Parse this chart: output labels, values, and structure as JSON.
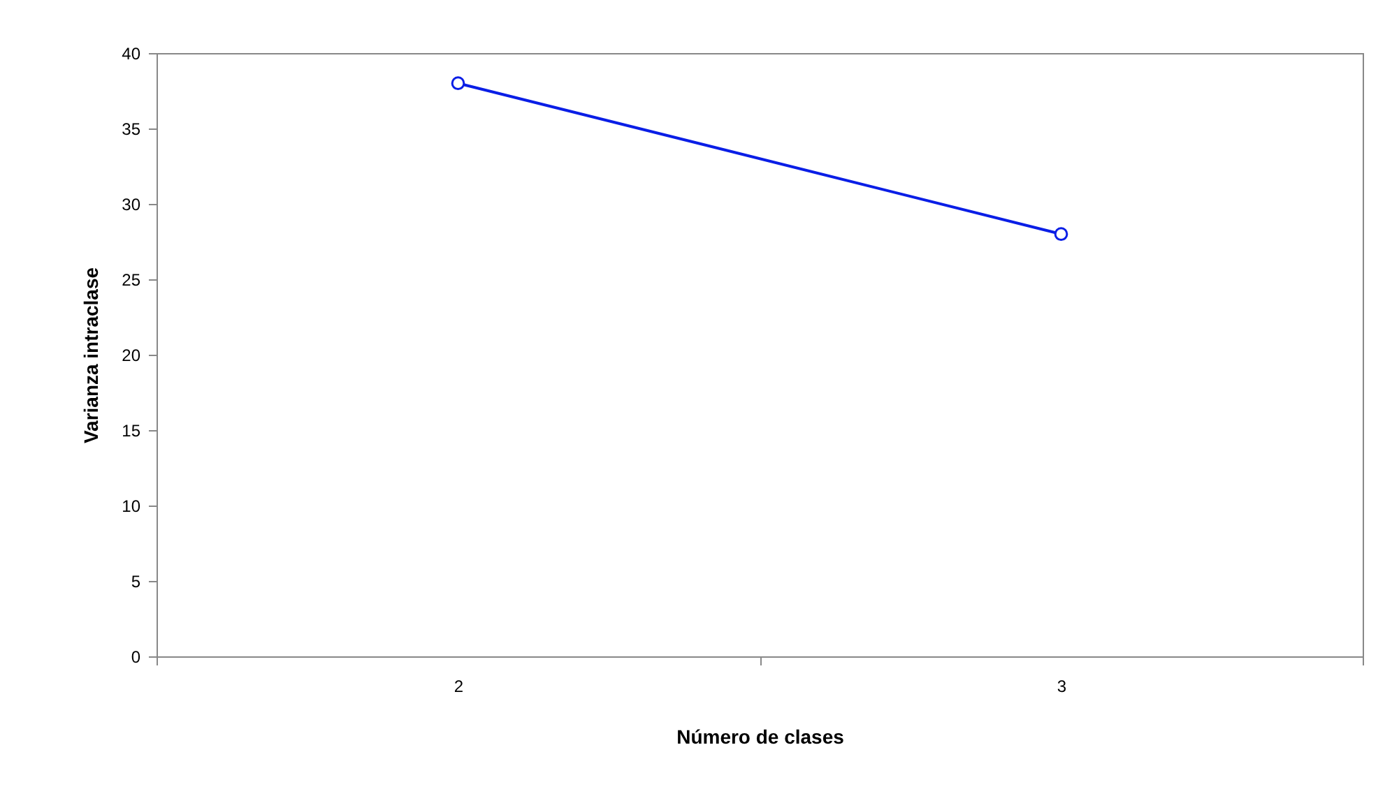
{
  "chart_data": {
    "type": "line",
    "xlabel": "Número de clases",
    "ylabel": "Varianza intraclase",
    "categories": [
      "2",
      "3"
    ],
    "series": [
      {
        "color": "#0a1ee6",
        "values": [
          38,
          28
        ]
      }
    ],
    "ylim": [
      0,
      40
    ],
    "yticks": [
      0,
      5,
      10,
      15,
      20,
      25,
      30,
      35,
      40
    ],
    "grid": false,
    "marker": "circle",
    "line_style": "solid"
  }
}
